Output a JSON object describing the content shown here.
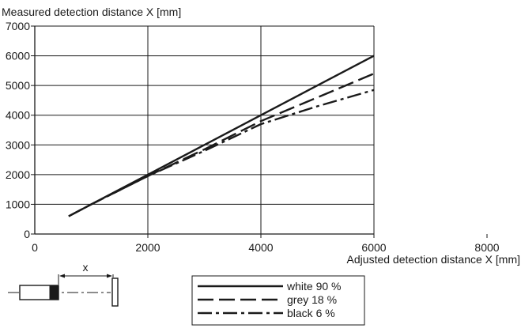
{
  "chart_data": {
    "type": "line",
    "title": "",
    "ylabel": "Measured detection distance X [mm]",
    "xlabel": "Adjusted detection distance X [mm]",
    "xlim": [
      0,
      8000
    ],
    "ylim": [
      0,
      7000
    ],
    "x_ticks": [
      "0",
      "2000",
      "4000",
      "6000",
      "8000"
    ],
    "y_ticks": [
      "0",
      "1000",
      "2000",
      "3000",
      "4000",
      "5000",
      "6000",
      "7000"
    ],
    "grid": true,
    "legend_position": "bottom-center",
    "series": [
      {
        "name": "white 90 %",
        "style": "solid",
        "x": [
          600,
          1000,
          2000,
          3000,
          4000,
          5000,
          6000
        ],
        "y": [
          600,
          1000,
          2000,
          3000,
          4000,
          5000,
          6000
        ]
      },
      {
        "name": "grey 18 %",
        "style": "dashed",
        "x": [
          600,
          1000,
          2000,
          3000,
          4000,
          5000,
          6000
        ],
        "y": [
          600,
          1000,
          1950,
          2850,
          3800,
          4600,
          5400
        ]
      },
      {
        "name": "black 6 %",
        "style": "dash-dot",
        "x": [
          600,
          1000,
          2000,
          3000,
          3500,
          4000,
          5000,
          6000
        ],
        "y": [
          600,
          1000,
          1950,
          2800,
          3250,
          3700,
          4300,
          4850
        ]
      }
    ]
  },
  "diagram": {
    "distance_label": "x"
  },
  "colors": {
    "ink": "#1a1a1a",
    "background": "#ffffff"
  }
}
